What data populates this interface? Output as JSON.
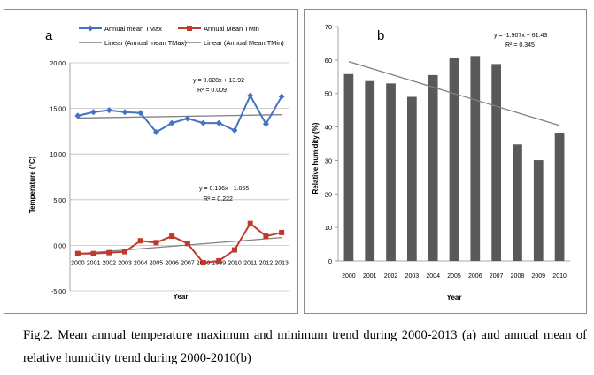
{
  "chart_data": [
    {
      "panel_letter": "a",
      "type": "line",
      "xlabel": "Year",
      "ylabel": "Temperature (°C)",
      "ylim": [
        -5,
        20
      ],
      "yticks": [
        "-5.00",
        "0.00",
        "5.00",
        "10.00",
        "15.00",
        "20.00"
      ],
      "ytick_values": [
        -5,
        0,
        5,
        10,
        15,
        20
      ],
      "categories": [
        "2000",
        "2001",
        "2002",
        "2003",
        "2004",
        "2005",
        "2006",
        "2007",
        "2008",
        "2009",
        "2010",
        "2011",
        "2012",
        "2013"
      ],
      "grid": true,
      "legend_position": "top",
      "legend": [
        "Annual mean TMax",
        "Annual Mean TMin",
        "Linear (Annual mean TMax)",
        "Linear (Annual Mean TMin)"
      ],
      "series": [
        {
          "name": "Annual mean TMax",
          "color": "#4472c4",
          "marker": "diamond",
          "values": [
            14.2,
            14.6,
            14.8,
            14.6,
            14.5,
            12.4,
            13.4,
            13.9,
            13.4,
            13.4,
            12.6,
            16.4,
            13.3,
            16.3
          ],
          "trend": {
            "slope": 0.028,
            "intercept": 13.92
          }
        },
        {
          "name": "Annual Mean TMin",
          "color": "#c0392b",
          "marker": "square",
          "values": [
            -0.9,
            -0.9,
            -0.8,
            -0.7,
            0.5,
            0.3,
            1.0,
            0.2,
            -1.9,
            -1.7,
            -0.5,
            2.4,
            1.0,
            1.4
          ],
          "trend": {
            "slope": 0.136,
            "intercept": -1.055
          }
        }
      ],
      "annotations": [
        {
          "equation": "y = 0.028x + 13.92",
          "r2": "R² = 0.009"
        },
        {
          "equation": "y = 0.136x - 1.055",
          "r2": "R² = 0.222"
        }
      ],
      "trend_color": "#808080"
    },
    {
      "panel_letter": "b",
      "type": "bar",
      "xlabel": "Year",
      "ylabel": "Relative humidity (%)",
      "ylim": [
        0,
        70
      ],
      "yticks": [
        "0",
        "10",
        "20",
        "30",
        "40",
        "50",
        "60",
        "70"
      ],
      "ytick_values": [
        0,
        10,
        20,
        30,
        40,
        50,
        60,
        70
      ],
      "categories": [
        "2000",
        "2001",
        "2002",
        "2003",
        "2004",
        "2005",
        "2006",
        "2007",
        "2008",
        "2009",
        "2010"
      ],
      "values": [
        55.8,
        53.7,
        53.0,
        49.0,
        55.5,
        60.5,
        61.2,
        58.8,
        34.8,
        30.1,
        38.3
      ],
      "bar_color": "#595959",
      "grid": false,
      "trend": {
        "slope": -1.907,
        "intercept": 61.43
      },
      "trend_color": "#808080",
      "annotations": [
        {
          "equation": "y = -1.907x + 61.43",
          "r2": "R² = 0.345"
        }
      ]
    }
  ],
  "caption": "Fig.2. Mean annual temperature maximum and minimum trend during 2000-2013 (a) and annual mean of relative humidity trend during 2000-2010(b)"
}
